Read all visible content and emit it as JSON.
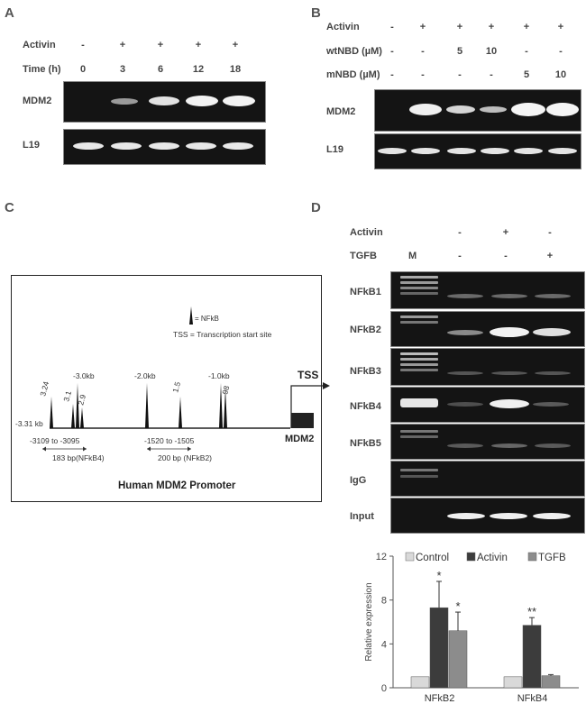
{
  "panels": {
    "a": "A",
    "b": "B",
    "c": "C",
    "d": "D"
  },
  "panelA": {
    "row_activin": "Activin",
    "row_time": "Time (h)",
    "activin": [
      "-",
      "+",
      "+",
      "+",
      "+"
    ],
    "time": [
      "0",
      "3",
      "6",
      "12",
      "18"
    ],
    "gel1": "MDM2",
    "gel2": "L19"
  },
  "panelB": {
    "row_activin": "Activin",
    "row_wt": "wtNBD (µM)",
    "row_m": "mNBD (µM)",
    "activin": [
      "-",
      "+",
      "+",
      "+",
      "+",
      "+"
    ],
    "wt": [
      "-",
      "-",
      "5",
      "10",
      "-",
      "-"
    ],
    "m": [
      "-",
      "-",
      "-",
      "-",
      "5",
      "10"
    ],
    "gel1": "MDM2",
    "gel2": "L19"
  },
  "panelC": {
    "legend_nfkb": "= NFkB",
    "legend_tss": "TSS = Transcription start site",
    "tss": "TSS",
    "gene": "MDM2",
    "title": "Human MDM2 Promoter",
    "start": "-3.31 kb",
    "peaks": [
      "3.24",
      "3.1",
      "-3.0kb",
      "2.9",
      "-2.0kb",
      "1.5",
      "-1.0kb",
      "98"
    ],
    "range1": "-3109 to -3095",
    "frag1": "183 bp(NFkB4)",
    "range2": "-1520 to -1505",
    "frag2": "200 bp (NFkB2)"
  },
  "panelD": {
    "row_activin": "Activin",
    "row_tgfb": "TGFB",
    "marker": "M",
    "activin": [
      "-",
      "+",
      "-"
    ],
    "tgfb": [
      "-",
      "-",
      "+"
    ],
    "gels": [
      "NFkB1",
      "NFkB2",
      "NFkB3",
      "NFkB4",
      "NFkB5",
      "IgG",
      "Input"
    ]
  },
  "chart_data": {
    "type": "bar",
    "categories": [
      "NFkB2",
      "NFkB4"
    ],
    "series": [
      {
        "name": "Control",
        "values": [
          1.0,
          1.0
        ],
        "errors": [
          0,
          0
        ],
        "color": "#d9d9d9"
      },
      {
        "name": "Activin",
        "values": [
          7.3,
          5.7
        ],
        "errors": [
          2.4,
          0.7
        ],
        "color": "#3c3c3c"
      },
      {
        "name": "TGFB",
        "values": [
          5.2,
          1.1
        ],
        "errors": [
          1.7,
          0.1
        ],
        "color": "#8c8c8c"
      }
    ],
    "significance": [
      [
        "",
        "*",
        "*"
      ],
      [
        "",
        "**",
        ""
      ]
    ],
    "ylabel": "Relative expression",
    "ylim": [
      0,
      12
    ],
    "yticks": [
      "0",
      "4",
      "8",
      "12"
    ],
    "legend_position": "top"
  }
}
